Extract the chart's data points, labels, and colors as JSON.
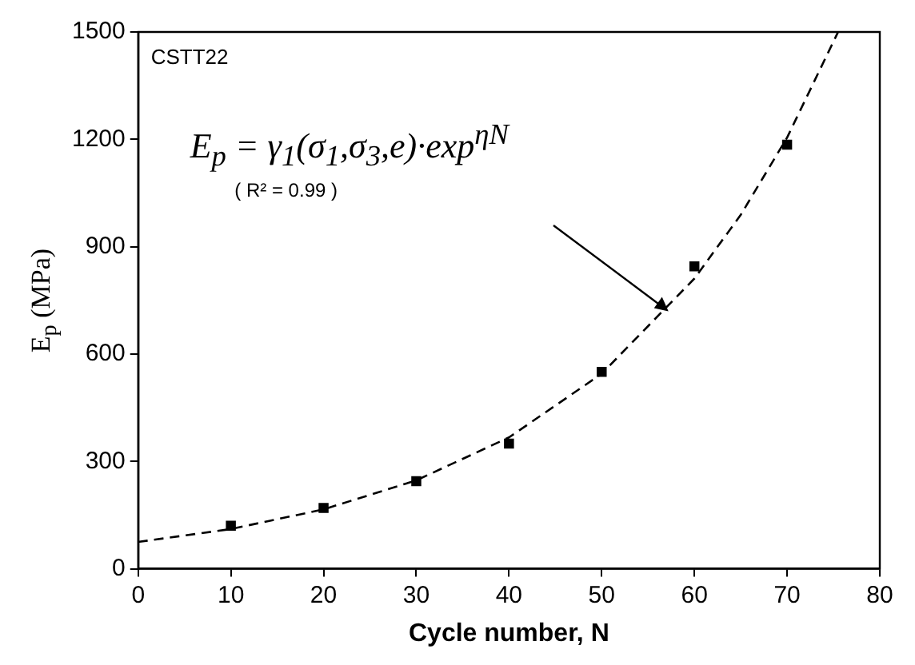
{
  "chart_data": {
    "type": "scatter",
    "xlabel": "Cycle number, N",
    "ylabel": "E$_{p}$ (MPa)",
    "xlim": [
      0,
      80
    ],
    "ylim": [
      0,
      1500
    ],
    "xticks": [
      0,
      10,
      20,
      30,
      40,
      50,
      60,
      70,
      80
    ],
    "yticks": [
      0,
      300,
      600,
      900,
      1200,
      1500
    ],
    "grid": false,
    "legend": false,
    "series": [
      {
        "type": "scatter",
        "color": "#000000",
        "marker": "square",
        "x": [
          10,
          20,
          30,
          40,
          50,
          60,
          70
        ],
        "values": [
          120,
          170,
          245,
          350,
          550,
          845,
          1185
        ]
      },
      {
        "type": "line",
        "color": "#000000",
        "line_style": "dashed",
        "marker": "none",
        "x": [
          0,
          10,
          20,
          30,
          40,
          50,
          60,
          65,
          70,
          75.5
        ],
        "values": [
          75,
          111,
          166,
          247,
          367,
          545,
          811,
          989,
          1205,
          1500
        ]
      }
    ],
    "annotations": [
      "CSTT22",
      "E$_{p}$ = γ$_{1}$(σ$_{1}$,σ$_{3}$,e)·exp$^{ηN}$",
      "( R² = 0.99 )"
    ]
  }
}
